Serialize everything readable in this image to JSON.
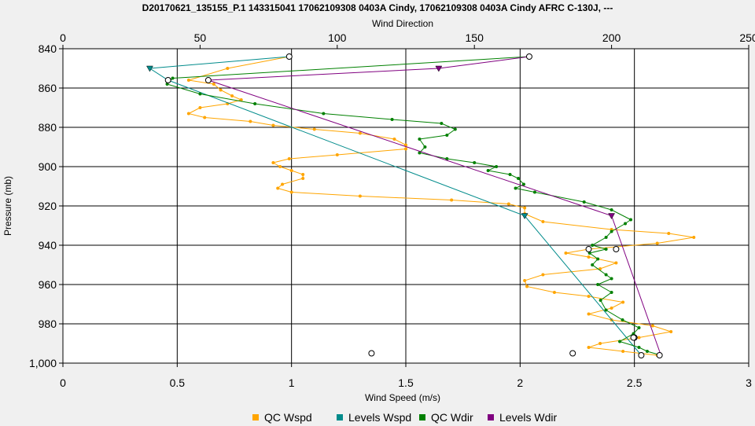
{
  "chart_data": {
    "type": "line",
    "title": "D20170621_135155_P.1 143315041 17062109308 0403A Cindy, 17062109308 0403A Cindy AFRC C-130J, ---",
    "xlabel_bottom": "Wind Speed (m/s)",
    "xlabel_top": "Wind Direction",
    "ylabel": "Pressure (mb)",
    "x_bottom_range": [
      0,
      3
    ],
    "x_bottom_ticks": [
      "0",
      "0.5",
      "1",
      "1.5",
      "2",
      "2.5",
      "3"
    ],
    "x_top_range": [
      0,
      250
    ],
    "x_top_ticks": [
      "0",
      "50",
      "100",
      "150",
      "200",
      "250"
    ],
    "y_range": [
      840,
      1000
    ],
    "y_inverted": true,
    "y_ticks": [
      "840",
      "860",
      "880",
      "900",
      "920",
      "940",
      "960",
      "980",
      "1,000"
    ],
    "grid": true,
    "legend_position": "bottom",
    "colors": {
      "qc_wspd": "#ffa500",
      "levels_wspd": "#008b8b",
      "qc_wdir": "#008000",
      "levels_wdir": "#800080"
    },
    "series": [
      {
        "name": "QC Wspd",
        "axis": "bottom",
        "points": [
          [
            0.99,
            844
          ],
          [
            0.72,
            850
          ],
          [
            0.55,
            856
          ],
          [
            0.66,
            858
          ],
          [
            0.69,
            861
          ],
          [
            0.74,
            864
          ],
          [
            0.78,
            866
          ],
          [
            0.72,
            868
          ],
          [
            0.6,
            870
          ],
          [
            0.55,
            873
          ],
          [
            0.62,
            875
          ],
          [
            0.82,
            877
          ],
          [
            0.92,
            879
          ],
          [
            1.1,
            881
          ],
          [
            1.3,
            883
          ],
          [
            1.45,
            886
          ],
          [
            1.5,
            889
          ],
          [
            1.5,
            891
          ],
          [
            1.2,
            894
          ],
          [
            0.99,
            896
          ],
          [
            0.92,
            898
          ],
          [
            0.95,
            900
          ],
          [
            1.0,
            902
          ],
          [
            1.05,
            904
          ],
          [
            1.05,
            906
          ],
          [
            0.96,
            909
          ],
          [
            0.94,
            911
          ],
          [
            1.0,
            913
          ],
          [
            1.3,
            915
          ],
          [
            1.7,
            917
          ],
          [
            1.95,
            919
          ],
          [
            2.02,
            921
          ],
          [
            2.02,
            924
          ],
          [
            2.1,
            928
          ],
          [
            2.4,
            932
          ],
          [
            2.65,
            934
          ],
          [
            2.76,
            936
          ],
          [
            2.6,
            939
          ],
          [
            2.3,
            942
          ],
          [
            2.2,
            944
          ],
          [
            2.3,
            946
          ],
          [
            2.42,
            949
          ],
          [
            2.35,
            952
          ],
          [
            2.1,
            955
          ],
          [
            2.02,
            958
          ],
          [
            2.03,
            961
          ],
          [
            2.15,
            964
          ],
          [
            2.3,
            966
          ],
          [
            2.45,
            969
          ],
          [
            2.4,
            972
          ],
          [
            2.3,
            975
          ],
          [
            2.4,
            978
          ],
          [
            2.58,
            981
          ],
          [
            2.66,
            984
          ],
          [
            2.52,
            987
          ],
          [
            2.35,
            990
          ],
          [
            2.3,
            992
          ],
          [
            2.45,
            994
          ],
          [
            2.6,
            996
          ]
        ]
      },
      {
        "name": "Levels Wspd",
        "axis": "bottom",
        "points": [
          [
            0.99,
            844
          ],
          [
            0.38,
            850
          ],
          [
            0.46,
            856
          ],
          [
            2.02,
            925
          ],
          [
            2.53,
            996
          ]
        ]
      },
      {
        "name": "QC Wdir",
        "axis": "top",
        "points": [
          [
            170,
            844
          ],
          [
            40,
            855
          ],
          [
            38,
            858
          ],
          [
            50,
            863
          ],
          [
            70,
            868
          ],
          [
            95,
            873
          ],
          [
            120,
            876
          ],
          [
            138,
            878
          ],
          [
            143,
            881
          ],
          [
            140,
            884
          ],
          [
            130,
            886
          ],
          [
            132,
            890
          ],
          [
            130,
            893
          ],
          [
            140,
            896
          ],
          [
            150,
            898
          ],
          [
            158,
            900
          ],
          [
            155,
            902
          ],
          [
            163,
            904
          ],
          [
            166,
            906
          ],
          [
            168,
            909
          ],
          [
            165,
            911
          ],
          [
            172,
            913
          ],
          [
            190,
            918
          ],
          [
            200,
            922
          ],
          [
            207,
            927
          ],
          [
            205,
            929
          ],
          [
            200,
            933
          ],
          [
            198,
            936
          ],
          [
            193,
            940
          ],
          [
            198,
            942
          ],
          [
            192,
            944
          ],
          [
            195,
            947
          ],
          [
            193,
            950
          ],
          [
            198,
            955
          ],
          [
            200,
            957
          ],
          [
            195,
            960
          ],
          [
            200,
            964
          ],
          [
            196,
            968
          ],
          [
            198,
            973
          ],
          [
            204,
            978
          ],
          [
            210,
            982
          ],
          [
            208,
            985
          ],
          [
            203,
            989
          ],
          [
            210,
            992
          ],
          [
            213,
            994
          ],
          [
            218,
            996
          ]
        ]
      },
      {
        "name": "Levels Wdir",
        "axis": "top",
        "points": [
          [
            170,
            844
          ],
          [
            137,
            850
          ],
          [
            53,
            856
          ],
          [
            200,
            925
          ],
          [
            218,
            996
          ]
        ]
      }
    ],
    "open_circle_markers": {
      "bottom_axis_points": [
        [
          0.99,
          844
        ],
        [
          0.46,
          856
        ],
        [
          1.35,
          995
        ],
        [
          2.23,
          995
        ],
        [
          2.3,
          942
        ],
        [
          2.42,
          942
        ],
        [
          2.5,
          987
        ],
        [
          2.53,
          996
        ],
        [
          2.61,
          996
        ]
      ],
      "top_axis_points": [
        [
          170,
          844
        ],
        [
          53,
          856
        ],
        [
          208,
          987
        ]
      ]
    }
  }
}
